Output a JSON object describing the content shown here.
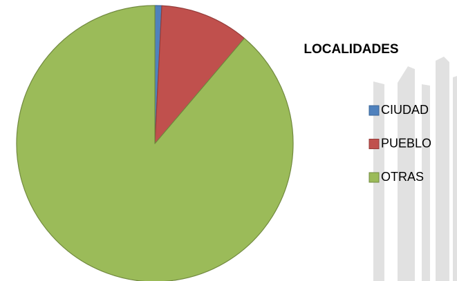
{
  "chart_data": {
    "type": "pie",
    "title": "LOCALIDADES",
    "categories": [
      "CIUDAD",
      "PUEBLO",
      "OTRAS"
    ],
    "values": [
      0.8,
      10.4,
      88.8
    ],
    "colors": [
      "#4f81bd",
      "#c0504d",
      "#9bbb59"
    ],
    "strokes": [
      "#3a6597",
      "#943c3a",
      "#71893f"
    ]
  }
}
